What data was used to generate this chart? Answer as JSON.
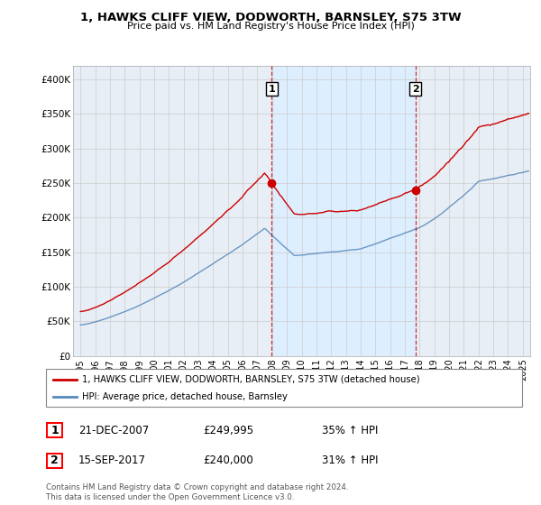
{
  "title": "1, HAWKS CLIFF VIEW, DODWORTH, BARNSLEY, S75 3TW",
  "subtitle": "Price paid vs. HM Land Registry's House Price Index (HPI)",
  "legend_line1": "1, HAWKS CLIFF VIEW, DODWORTH, BARNSLEY, S75 3TW (detached house)",
  "legend_line2": "HPI: Average price, detached house, Barnsley",
  "transaction1_date": "21-DEC-2007",
  "transaction1_price": "£249,995",
  "transaction1_hpi": "35% ↑ HPI",
  "transaction2_date": "15-SEP-2017",
  "transaction2_price": "£240,000",
  "transaction2_hpi": "31% ↑ HPI",
  "footer": "Contains HM Land Registry data © Crown copyright and database right 2024.\nThis data is licensed under the Open Government Licence v3.0.",
  "red_color": "#cc0000",
  "blue_color": "#5588bb",
  "shade_color": "#ddeeff",
  "background_color": "#ffffff",
  "plot_bg_color": "#e8eef5",
  "grid_color": "#cccccc",
  "marker1_year": 2007.97,
  "marker2_year": 2017.71,
  "marker1_price": 249995,
  "marker2_price": 240000,
  "ylim_min": 0,
  "ylim_max": 420000,
  "xlim_min": 1994.5,
  "xlim_max": 2025.5,
  "yticks": [
    0,
    50000,
    100000,
    150000,
    200000,
    250000,
    300000,
    350000,
    400000
  ],
  "ytick_labels": [
    "£0",
    "£50K",
    "£100K",
    "£150K",
    "£200K",
    "£250K",
    "£300K",
    "£350K",
    "£400K"
  ],
  "xticks": [
    1995,
    1996,
    1997,
    1998,
    1999,
    2000,
    2001,
    2002,
    2003,
    2004,
    2005,
    2006,
    2007,
    2008,
    2009,
    2010,
    2011,
    2012,
    2013,
    2014,
    2015,
    2016,
    2017,
    2018,
    2019,
    2020,
    2021,
    2022,
    2023,
    2024,
    2025
  ]
}
